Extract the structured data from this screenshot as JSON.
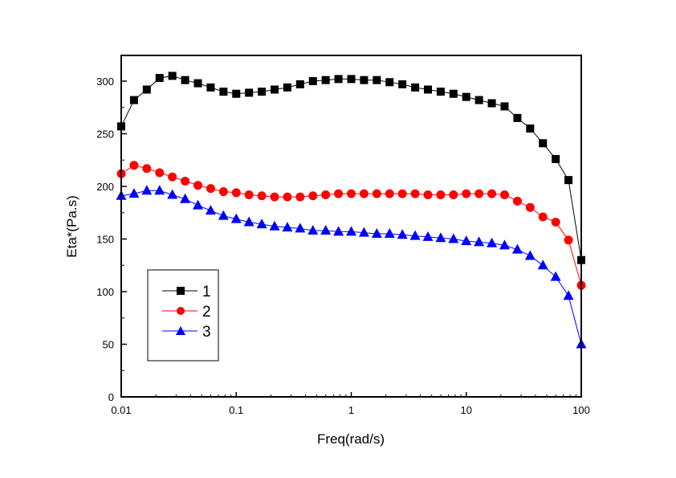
{
  "chart_data": {
    "type": "line",
    "title": "",
    "xlabel": "Freq(rad/s)",
    "ylabel": "Eta*(Pa.s)",
    "xscale": "log",
    "xlim": [
      0.01,
      100
    ],
    "ylim": [
      0,
      325
    ],
    "x_ticks": [
      {
        "value": 0.01,
        "label": "0.01"
      },
      {
        "value": 0.1,
        "label": "0.1"
      },
      {
        "value": 1,
        "label": "1"
      },
      {
        "value": 10,
        "label": "10"
      },
      {
        "value": 100,
        "label": "100"
      }
    ],
    "y_ticks": [
      {
        "value": 0,
        "label": "0"
      },
      {
        "value": 50,
        "label": "50"
      },
      {
        "value": 100,
        "label": "100"
      },
      {
        "value": 150,
        "label": "150"
      },
      {
        "value": 200,
        "label": "200"
      },
      {
        "value": 250,
        "label": "250"
      },
      {
        "value": 300,
        "label": "300"
      }
    ],
    "grid": false,
    "legend_position": "bottom-left",
    "x_exponent_start": -2,
    "points_per_decade": 9,
    "series": [
      {
        "name": "1",
        "color": "#000000",
        "marker": "square",
        "values": [
          257,
          282,
          292,
          303,
          305,
          301,
          298,
          294,
          290,
          288,
          289,
          290,
          292,
          294,
          297,
          300,
          301,
          302,
          302,
          301,
          301,
          299,
          297,
          294,
          292,
          290,
          288,
          285,
          282,
          279,
          276,
          265,
          255,
          241,
          226,
          206,
          130
        ]
      },
      {
        "name": "2",
        "color": "#ff0000",
        "marker": "circle",
        "values": [
          212,
          220,
          217,
          213,
          209,
          205,
          201,
          198,
          195,
          194,
          192,
          191,
          190,
          190,
          190,
          191,
          192,
          193,
          193,
          193,
          193,
          193,
          193,
          193,
          192,
          192,
          192,
          193,
          193,
          193,
          192,
          186,
          180,
          171,
          166,
          149,
          106
        ]
      },
      {
        "name": "3",
        "color": "#0000ff",
        "marker": "triangle",
        "values": [
          191,
          193,
          196,
          196,
          192,
          188,
          182,
          177,
          172,
          169,
          166,
          164,
          162,
          161,
          160,
          158,
          158,
          157,
          157,
          156,
          155,
          155,
          154,
          153,
          152,
          151,
          150,
          148,
          147,
          146,
          144,
          140,
          134,
          125,
          114,
          96,
          50
        ]
      }
    ]
  }
}
